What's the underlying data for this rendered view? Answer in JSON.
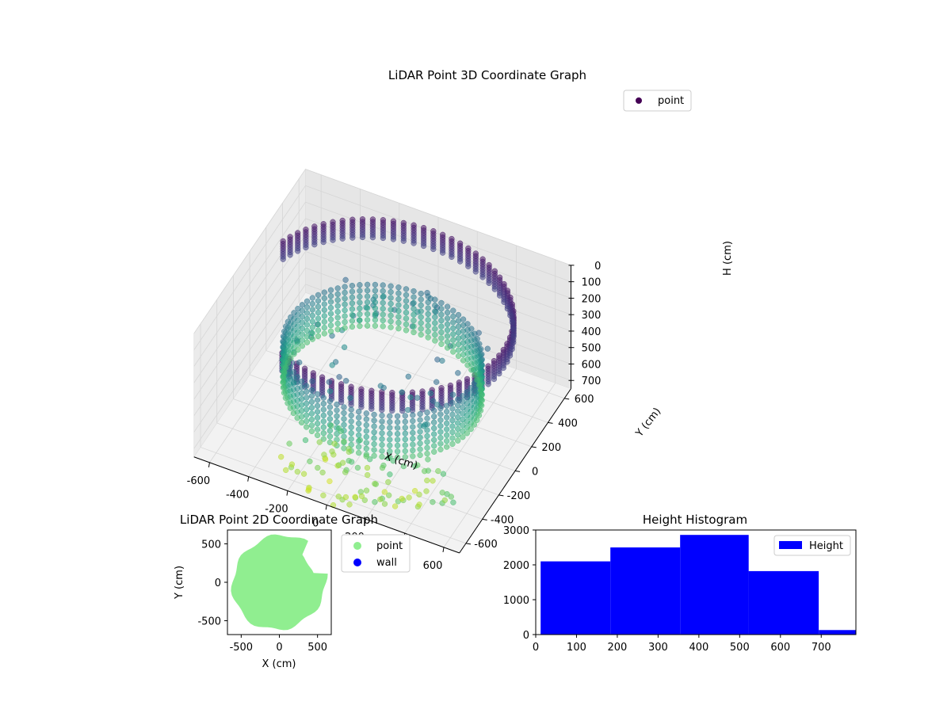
{
  "colors": {
    "point_2d": "#90ee90",
    "wall": "#0000ff",
    "hist_bar": "#0000ff",
    "colormap": "viridis"
  },
  "chart_data": [
    {
      "type": "scatter",
      "projection": "3d",
      "title": "LiDAR Point 3D Coordinate Graph",
      "xlabel": "X (cm)",
      "ylabel": "Y (cm)",
      "zlabel": "H (cm)",
      "xlim": [
        -680,
        680
      ],
      "ylim": [
        -680,
        680
      ],
      "zlim": [
        0,
        750
      ],
      "z_inverted": true,
      "x_ticks": [
        "-600",
        "-400",
        "-200",
        "0",
        "200",
        "400",
        "600"
      ],
      "y_ticks": [
        "-600",
        "-400",
        "-200",
        "0",
        "200",
        "400",
        "600"
      ],
      "z_ticks": [
        "0",
        "100",
        "200",
        "300",
        "400",
        "500",
        "600",
        "700"
      ],
      "legend": [
        "point"
      ],
      "legend_position": "top-right",
      "grid": true,
      "structure": {
        "rings": [
          {
            "radius": 620,
            "h_top": 40,
            "h_bottom": 150
          },
          {
            "radius": 470,
            "h_top": 310,
            "h_bottom": 560
          }
        ],
        "scattered_h_range": [
          550,
          750
        ]
      }
    },
    {
      "type": "scatter",
      "title": "LiDAR Point 2D Coordinate Graph",
      "xlabel": "X (cm)",
      "ylabel": "Y (cm)",
      "xlim": [
        -680,
        680
      ],
      "ylim": [
        -680,
        680
      ],
      "x_ticks": [
        "-500",
        "0",
        "500"
      ],
      "y_ticks": [
        "-500",
        "0",
        "500"
      ],
      "legend": [
        "point",
        "wall"
      ],
      "legend_position": "outside-right",
      "footprint_radius": 660
    },
    {
      "type": "bar",
      "title": "Height Histogram",
      "legend": [
        "Height"
      ],
      "legend_position": "top-right",
      "xlim": [
        0,
        785
      ],
      "ylim": [
        0,
        3000
      ],
      "x_ticks": [
        "0",
        "100",
        "200",
        "300",
        "400",
        "500",
        "600",
        "700"
      ],
      "y_ticks": [
        "0",
        "1000",
        "2000",
        "3000"
      ],
      "bins": [
        {
          "start": 12,
          "end": 183,
          "count": 2100
        },
        {
          "start": 183,
          "end": 354,
          "count": 2500
        },
        {
          "start": 354,
          "end": 522,
          "count": 2860
        },
        {
          "start": 522,
          "end": 694,
          "count": 1820
        },
        {
          "start": 694,
          "end": 785,
          "count": 130
        }
      ]
    }
  ]
}
